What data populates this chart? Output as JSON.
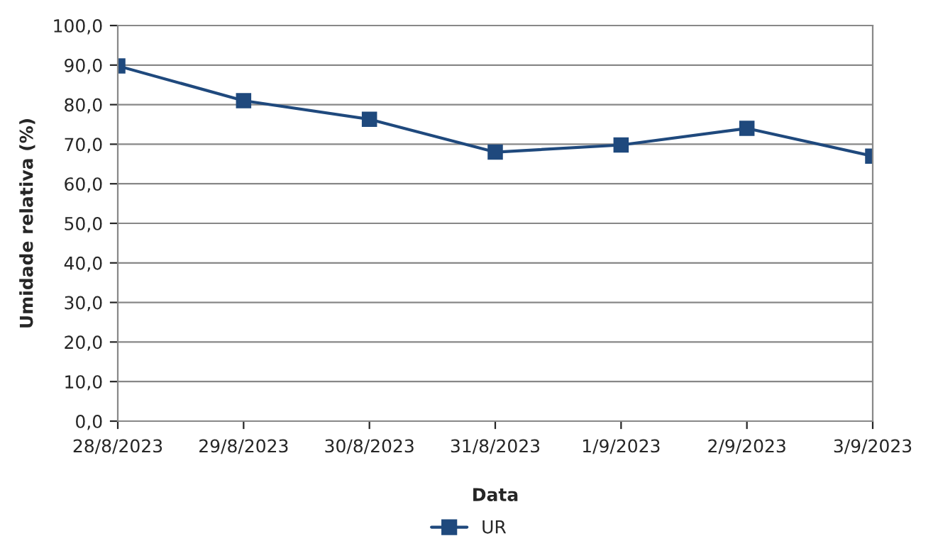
{
  "chart_data": {
    "type": "line",
    "xlabel": "Data",
    "ylabel": "Umidade relativa (%)",
    "categories": [
      "28/8/2023",
      "29/8/2023",
      "30/8/2023",
      "31/8/2023",
      "1/9/2023",
      "2/9/2023",
      "3/9/2023"
    ],
    "series": [
      {
        "name": "UR",
        "color": "#1f497d",
        "values": [
          89.8,
          81.0,
          76.3,
          68.0,
          69.8,
          74.0,
          67.0
        ]
      }
    ],
    "ylim": [
      0,
      100
    ],
    "yticks": [
      {
        "value": 0,
        "label": "0,0"
      },
      {
        "value": 10,
        "label": "10,0"
      },
      {
        "value": 20,
        "label": "20,0"
      },
      {
        "value": 30,
        "label": "30,0"
      },
      {
        "value": 40,
        "label": "40,0"
      },
      {
        "value": 50,
        "label": "50,0"
      },
      {
        "value": 60,
        "label": "60,0"
      },
      {
        "value": 70,
        "label": "70,0"
      },
      {
        "value": 80,
        "label": "80,0"
      },
      {
        "value": 90,
        "label": "90,0"
      },
      {
        "value": 100,
        "label": "100,0"
      }
    ],
    "grid": "y",
    "legend": "bottom",
    "marker": "square",
    "line_style": "solid"
  }
}
